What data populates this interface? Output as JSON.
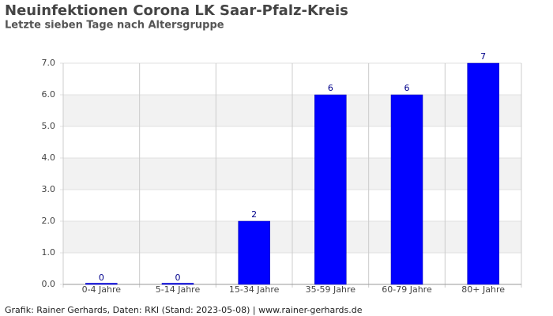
{
  "chart_data": {
    "type": "bar",
    "title": "Neuinfektionen Corona LK Saar-Pfalz-Kreis",
    "subtitle": "Letzte sieben Tage nach Altersgruppe",
    "categories": [
      "0-4 Jahre",
      "5-14 Jahre",
      "15-34 Jahre",
      "35-59 Jahre",
      "60-79 Jahre",
      "80+ Jahre"
    ],
    "values": [
      0,
      0,
      2,
      6,
      6,
      7
    ],
    "color": "#0000ff",
    "label_color": "#00008b",
    "ylim": [
      0,
      7
    ],
    "yticks": [
      {
        "value": 0,
        "label": "0.0"
      },
      {
        "value": 1,
        "label": "1.0"
      },
      {
        "value": 2,
        "label": "2.0"
      },
      {
        "value": 3,
        "label": "3.0"
      },
      {
        "value": 4,
        "label": "4.0"
      },
      {
        "value": 5,
        "label": "5.0"
      },
      {
        "value": 6,
        "label": "6.0"
      },
      {
        "value": 7,
        "label": "7.0"
      }
    ],
    "grid": true,
    "footer": "Grafik: Rainer Gerhards, Daten: RKI (Stand: 2023-05-08) | www.rainer-gerhards.de"
  }
}
